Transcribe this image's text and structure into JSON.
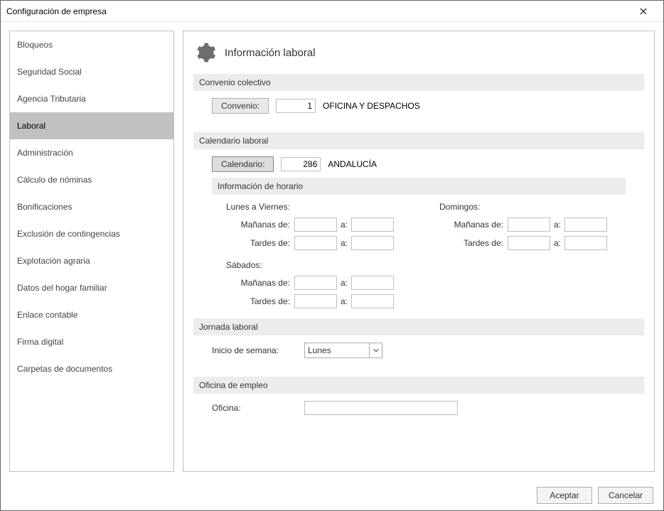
{
  "window": {
    "title": "Configuración de empresa"
  },
  "sidebar": {
    "items": [
      {
        "label": "Bloqueos"
      },
      {
        "label": "Seguridad Social"
      },
      {
        "label": "Agencia Tributaria"
      },
      {
        "label": "Laboral",
        "selected": true
      },
      {
        "label": "Administración"
      },
      {
        "label": "Cálculo de nóminas"
      },
      {
        "label": "Bonificaciones"
      },
      {
        "label": "Exclusión de contingencias"
      },
      {
        "label": "Explotación agraria"
      },
      {
        "label": "Datos del hogar familiar"
      },
      {
        "label": "Enlace contable"
      },
      {
        "label": "Firma digital"
      },
      {
        "label": "Carpetas de documentos"
      }
    ]
  },
  "page": {
    "title": "Información laboral"
  },
  "sections": {
    "convenio": {
      "header": "Convenio colectivo",
      "btn_label": "Convenio:",
      "code": "1",
      "name": "OFICINA Y DESPACHOS"
    },
    "calendario": {
      "header": "Calendario laboral",
      "btn_label": "Calendario:",
      "code": "286",
      "name": "ANDALUCÍA",
      "sub_header": "Información de horario",
      "cols": {
        "weekday": {
          "title": "Lunes a Viernes:",
          "rows": [
            "Mañanas de:",
            "Tardes de:"
          ]
        },
        "sunday": {
          "title": "Domingos:",
          "rows": [
            "Mañanas de:",
            "Tardes de:"
          ]
        },
        "saturday": {
          "title": "Sábados:",
          "rows": [
            "Mañanas de:",
            "Tardes de:"
          ]
        }
      },
      "sep": "a:"
    },
    "jornada": {
      "header": "Jornada laboral",
      "label": "Inicio de semana:",
      "value": "Lunes"
    },
    "oficina": {
      "header": "Oficina de empleo",
      "label": "Oficina:",
      "value": ""
    }
  },
  "footer": {
    "ok": "Aceptar",
    "cancel": "Cancelar"
  }
}
